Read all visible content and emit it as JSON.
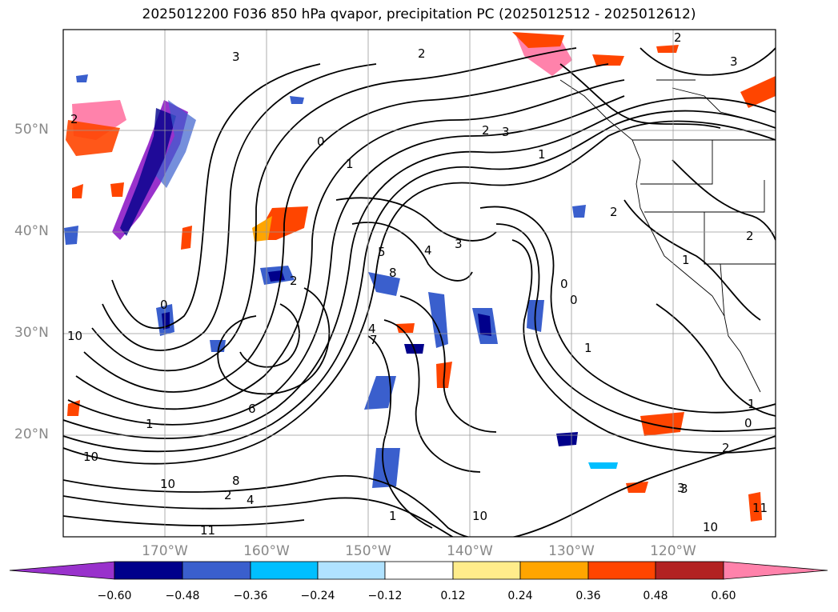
{
  "title": "2025012200 F036 850 hPa qvapor, precipitation PC (2025012512 - 2025012612)",
  "map": {
    "lon_labels": [
      "170°W",
      "160°W",
      "150°W",
      "140°W",
      "130°W",
      "120°W"
    ],
    "lat_labels": [
      "50°N",
      "40°N",
      "30°N",
      "20°N"
    ],
    "contour_labels": [
      "3",
      "2",
      "2",
      "3",
      "2",
      "0",
      "2",
      "3",
      "1",
      "1",
      "2",
      "2",
      "1",
      "2",
      "0",
      "0",
      "1",
      "4",
      "5",
      "8",
      "7",
      "4",
      "3",
      "10",
      "10",
      "10",
      "8",
      "6",
      "1",
      "1",
      "2",
      "3",
      "10",
      "4",
      "0",
      "1",
      "0",
      "2",
      "3",
      "11",
      "11",
      "10"
    ]
  },
  "colorbar": {
    "ticks": [
      "−0.60",
      "−0.48",
      "−0.36",
      "−0.24",
      "−0.12",
      "0.12",
      "0.24",
      "0.36",
      "0.48",
      "0.60"
    ],
    "colors": [
      "#9932CC",
      "#00008B",
      "#3A5FCD",
      "#00BFFF",
      "#B0E2FF",
      "#FFFFFF",
      "#FFEC8B",
      "#FFA500",
      "#FF4500",
      "#B22222",
      "#FF82AB"
    ]
  }
}
